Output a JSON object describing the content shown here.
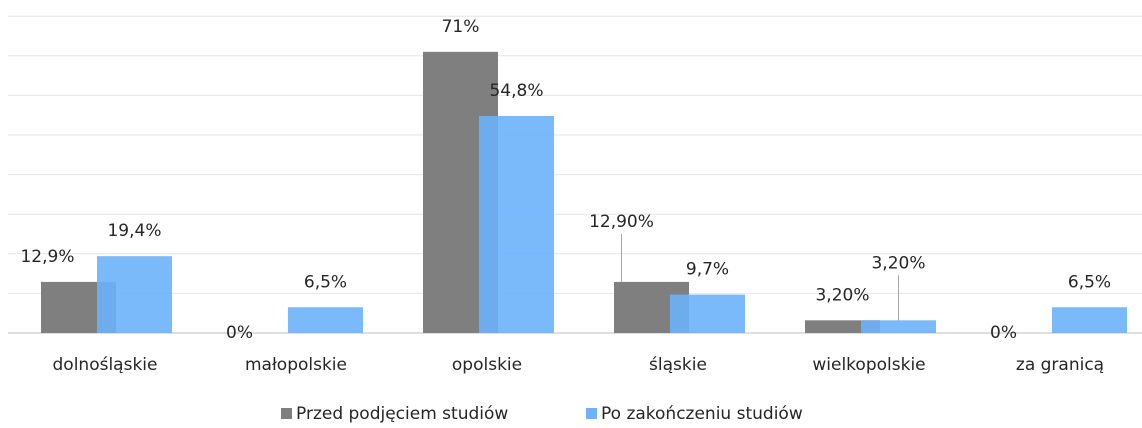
{
  "chart_data": {
    "type": "bar",
    "categories": [
      "dolnośląskie",
      "małopolskie",
      "opolskie",
      "śląskie",
      "wielkopolskie",
      "za granicą"
    ],
    "series": [
      {
        "name": "Przed podjęciem studiów",
        "color": "#7f7f7f",
        "values": [
          12.9,
          0,
          71,
          12.9,
          3.2,
          0
        ],
        "value_labels": [
          "12,9%",
          "0%",
          "71%",
          "12,90%",
          "3,20%",
          "0%"
        ]
      },
      {
        "name": "Po zakończeniu studiów",
        "color": "#6cb3fb",
        "values": [
          19.4,
          6.5,
          54.8,
          9.7,
          3.2,
          6.5
        ],
        "value_labels": [
          "19,4%",
          "6,5%",
          "54,8%",
          "9,7%",
          "3,20%",
          "6,5%"
        ]
      }
    ],
    "ylim": [
      0,
      80
    ],
    "yticks": [
      0,
      10,
      20,
      30,
      40,
      50,
      60,
      70,
      80
    ],
    "grid": true
  }
}
